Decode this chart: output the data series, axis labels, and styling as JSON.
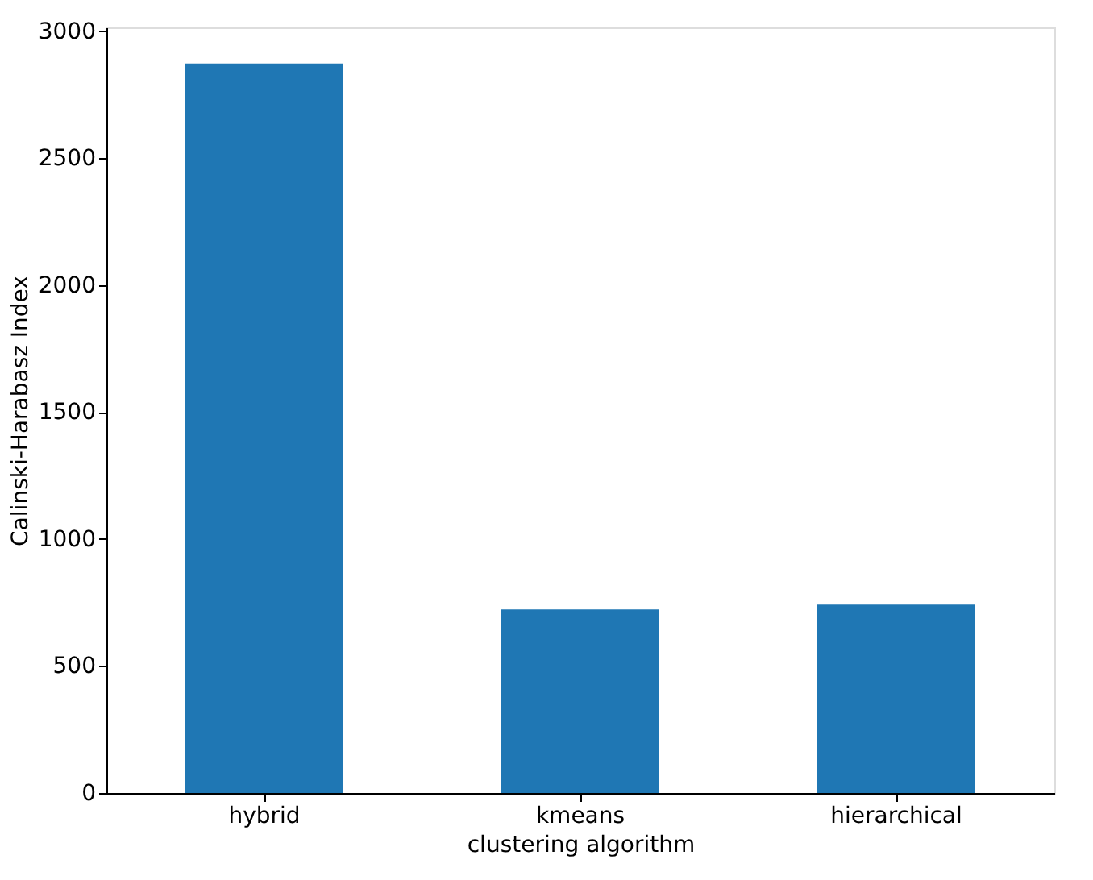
{
  "chart_data": {
    "type": "bar",
    "xlabel": "clustering algorithm",
    "ylabel": "Calinski-Harabasz Index",
    "categories": [
      "hybrid",
      "kmeans",
      "hierarchical"
    ],
    "values": [
      2873,
      723,
      742
    ],
    "color": "#1f77b4",
    "ylim": [
      0,
      3015
    ],
    "yticks": [
      0,
      500,
      1000,
      1500,
      2000,
      2500,
      3000
    ],
    "grid": false
  }
}
